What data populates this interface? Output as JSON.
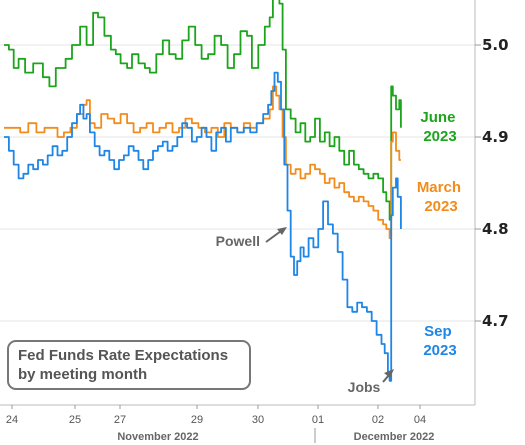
{
  "chart_data": {
    "type": "line",
    "title": "Fed Funds Rate Expectations",
    "subtitle": "by meeting month",
    "x_axis": {
      "ticks": [
        "24",
        "25",
        "27",
        "29",
        "30",
        "01",
        "02",
        "04"
      ],
      "months": [
        "November 2022",
        "December 2022"
      ]
    },
    "y_axis": {
      "ticks": [
        "5.0",
        "4.9",
        "4.8",
        "4.7"
      ],
      "range": [
        4.6,
        5.08
      ],
      "side": "right"
    },
    "annotations": [
      "Powell",
      "Jobs"
    ],
    "series": [
      {
        "name": "June 2023",
        "label_lines": [
          "June",
          "2023"
        ],
        "color": "#1ca51c",
        "points": [
          [
            0,
            5.0
          ],
          [
            0.3,
            4.995
          ],
          [
            0.6,
            4.975
          ],
          [
            0.9,
            4.985
          ],
          [
            1.3,
            4.97
          ],
          [
            1.8,
            4.98
          ],
          [
            2.4,
            4.965
          ],
          [
            2.8,
            4.955
          ],
          [
            3.2,
            4.975
          ],
          [
            3.8,
            4.985
          ],
          [
            4.2,
            5.0
          ],
          [
            4.7,
            5.02
          ],
          [
            5.1,
            5.0
          ],
          [
            5.5,
            5.035
          ],
          [
            5.8,
            5.03
          ],
          [
            6.2,
            5.01
          ],
          [
            6.6,
            4.995
          ],
          [
            6.9,
            4.99
          ],
          [
            7.2,
            4.98
          ],
          [
            7.6,
            4.975
          ],
          [
            7.9,
            4.99
          ],
          [
            8.3,
            4.98
          ],
          [
            8.7,
            4.975
          ],
          [
            9.0,
            4.97
          ],
          [
            9.4,
            4.99
          ],
          [
            9.8,
            5.005
          ],
          [
            10.2,
            4.99
          ],
          [
            10.6,
            4.985
          ],
          [
            11.0,
            5.005
          ],
          [
            11.4,
            5.02
          ],
          [
            11.8,
            5.0
          ],
          [
            12.2,
            4.985
          ],
          [
            12.6,
            4.99
          ],
          [
            13.0,
            5.01
          ],
          [
            13.4,
            5.0
          ],
          [
            13.8,
            4.975
          ],
          [
            14.2,
            4.99
          ],
          [
            14.6,
            5.015
          ],
          [
            15.0,
            5.01
          ],
          [
            15.3,
            4.975
          ],
          [
            15.7,
            5.0
          ],
          [
            16.1,
            5.02
          ],
          [
            16.4,
            5.03
          ],
          [
            16.6,
            5.065
          ],
          [
            16.8,
            5.055
          ],
          [
            17.0,
            5.045
          ],
          [
            17.2,
            4.995
          ],
          [
            17.4,
            4.93
          ],
          [
            17.7,
            4.92
          ],
          [
            18.0,
            4.905
          ],
          [
            18.3,
            4.915
          ],
          [
            18.6,
            4.895
          ],
          [
            18.9,
            4.9
          ],
          [
            19.2,
            4.92
          ],
          [
            19.5,
            4.895
          ],
          [
            19.8,
            4.905
          ],
          [
            20.1,
            4.89
          ],
          [
            20.4,
            4.9
          ],
          [
            20.7,
            4.885
          ],
          [
            21.0,
            4.87
          ],
          [
            21.3,
            4.885
          ],
          [
            21.6,
            4.87
          ],
          [
            21.9,
            4.865
          ],
          [
            22.2,
            4.86
          ],
          [
            22.5,
            4.855
          ],
          [
            22.8,
            4.86
          ],
          [
            23.1,
            4.855
          ],
          [
            23.4,
            4.84
          ],
          [
            23.6,
            4.83
          ],
          [
            23.8,
            4.81
          ],
          [
            23.9,
            4.955
          ],
          [
            24.0,
            4.945
          ],
          [
            24.2,
            4.93
          ],
          [
            24.4,
            4.94
          ],
          [
            24.5,
            4.91
          ]
        ]
      },
      {
        "name": "March 2023",
        "label_lines": [
          "March",
          "2023"
        ],
        "color": "#f28c1c",
        "points": [
          [
            0,
            4.91
          ],
          [
            0.5,
            4.91
          ],
          [
            1.0,
            4.905
          ],
          [
            1.5,
            4.915
          ],
          [
            2.0,
            4.905
          ],
          [
            2.5,
            4.91
          ],
          [
            2.9,
            4.91
          ],
          [
            3.3,
            4.9
          ],
          [
            3.7,
            4.905
          ],
          [
            4.1,
            4.91
          ],
          [
            4.5,
            4.925
          ],
          [
            4.9,
            4.935
          ],
          [
            5.1,
            4.94
          ],
          [
            5.3,
            4.915
          ],
          [
            5.6,
            4.91
          ],
          [
            6.0,
            4.925
          ],
          [
            6.4,
            4.92
          ],
          [
            6.8,
            4.915
          ],
          [
            7.2,
            4.925
          ],
          [
            7.6,
            4.915
          ],
          [
            8.0,
            4.905
          ],
          [
            8.4,
            4.91
          ],
          [
            8.8,
            4.915
          ],
          [
            9.2,
            4.905
          ],
          [
            9.6,
            4.91
          ],
          [
            10.0,
            4.915
          ],
          [
            10.4,
            4.905
          ],
          [
            10.8,
            4.91
          ],
          [
            11.2,
            4.92
          ],
          [
            11.6,
            4.915
          ],
          [
            12.0,
            4.91
          ],
          [
            12.4,
            4.905
          ],
          [
            12.8,
            4.91
          ],
          [
            13.2,
            4.9
          ],
          [
            13.6,
            4.915
          ],
          [
            14.0,
            4.91
          ],
          [
            14.4,
            4.905
          ],
          [
            14.8,
            4.915
          ],
          [
            15.2,
            4.91
          ],
          [
            15.6,
            4.915
          ],
          [
            16.0,
            4.92
          ],
          [
            16.4,
            4.93
          ],
          [
            16.6,
            4.955
          ],
          [
            16.8,
            4.945
          ],
          [
            17.0,
            4.93
          ],
          [
            17.2,
            4.9
          ],
          [
            17.4,
            4.87
          ],
          [
            17.7,
            4.86
          ],
          [
            18.0,
            4.865
          ],
          [
            18.3,
            4.855
          ],
          [
            18.6,
            4.86
          ],
          [
            18.9,
            4.87
          ],
          [
            19.2,
            4.865
          ],
          [
            19.5,
            4.86
          ],
          [
            19.8,
            4.85
          ],
          [
            20.1,
            4.855
          ],
          [
            20.4,
            4.845
          ],
          [
            20.7,
            4.85
          ],
          [
            21.0,
            4.84
          ],
          [
            21.3,
            4.835
          ],
          [
            21.6,
            4.83
          ],
          [
            21.9,
            4.835
          ],
          [
            22.2,
            4.83
          ],
          [
            22.5,
            4.825
          ],
          [
            22.8,
            4.82
          ],
          [
            23.1,
            4.81
          ],
          [
            23.4,
            4.805
          ],
          [
            23.6,
            4.8
          ],
          [
            23.8,
            4.79
          ],
          [
            23.9,
            4.895
          ],
          [
            24.0,
            4.905
          ],
          [
            24.2,
            4.885
          ],
          [
            24.4,
            4.875
          ],
          [
            24.5,
            4.875
          ]
        ]
      },
      {
        "name": "Sep 2023",
        "label_lines": [
          "Sep",
          "2023"
        ],
        "color": "#1e86e6",
        "points": [
          [
            0,
            4.9
          ],
          [
            0.3,
            4.885
          ],
          [
            0.6,
            4.87
          ],
          [
            0.9,
            4.855
          ],
          [
            1.2,
            4.86
          ],
          [
            1.5,
            4.87
          ],
          [
            1.8,
            4.865
          ],
          [
            2.1,
            4.875
          ],
          [
            2.4,
            4.87
          ],
          [
            2.7,
            4.88
          ],
          [
            3.0,
            4.89
          ],
          [
            3.3,
            4.88
          ],
          [
            3.6,
            4.885
          ],
          [
            3.9,
            4.9
          ],
          [
            4.2,
            4.915
          ],
          [
            4.5,
            4.925
          ],
          [
            4.7,
            4.935
          ],
          [
            4.9,
            4.92
          ],
          [
            5.1,
            4.925
          ],
          [
            5.3,
            4.905
          ],
          [
            5.6,
            4.89
          ],
          [
            5.9,
            4.88
          ],
          [
            6.2,
            4.885
          ],
          [
            6.5,
            4.875
          ],
          [
            6.8,
            4.865
          ],
          [
            7.1,
            4.875
          ],
          [
            7.4,
            4.88
          ],
          [
            7.7,
            4.89
          ],
          [
            8.0,
            4.885
          ],
          [
            8.3,
            4.875
          ],
          [
            8.6,
            4.865
          ],
          [
            8.9,
            4.875
          ],
          [
            9.2,
            4.885
          ],
          [
            9.5,
            4.89
          ],
          [
            9.8,
            4.895
          ],
          [
            10.1,
            4.885
          ],
          [
            10.4,
            4.89
          ],
          [
            10.7,
            4.9
          ],
          [
            11.0,
            4.915
          ],
          [
            11.3,
            4.91
          ],
          [
            11.6,
            4.895
          ],
          [
            11.9,
            4.9
          ],
          [
            12.2,
            4.91
          ],
          [
            12.5,
            4.9
          ],
          [
            12.8,
            4.885
          ],
          [
            13.1,
            4.905
          ],
          [
            13.4,
            4.91
          ],
          [
            13.7,
            4.895
          ],
          [
            14.0,
            4.91
          ],
          [
            14.4,
            4.905
          ],
          [
            14.8,
            4.91
          ],
          [
            15.2,
            4.905
          ],
          [
            15.6,
            4.915
          ],
          [
            16.0,
            4.925
          ],
          [
            16.3,
            4.935
          ],
          [
            16.5,
            4.95
          ],
          [
            16.7,
            4.97
          ],
          [
            16.9,
            4.96
          ],
          [
            17.1,
            4.93
          ],
          [
            17.3,
            4.87
          ],
          [
            17.5,
            4.82
          ],
          [
            17.7,
            4.77
          ],
          [
            17.9,
            4.75
          ],
          [
            18.1,
            4.765
          ],
          [
            18.3,
            4.78
          ],
          [
            18.5,
            4.77
          ],
          [
            18.8,
            4.79
          ],
          [
            19.1,
            4.78
          ],
          [
            19.4,
            4.8
          ],
          [
            19.7,
            4.83
          ],
          [
            20.0,
            4.805
          ],
          [
            20.3,
            4.795
          ],
          [
            20.6,
            4.775
          ],
          [
            20.9,
            4.745
          ],
          [
            21.2,
            4.715
          ],
          [
            21.5,
            4.71
          ],
          [
            21.8,
            4.72
          ],
          [
            22.1,
            4.715
          ],
          [
            22.4,
            4.71
          ],
          [
            22.7,
            4.7
          ],
          [
            23.0,
            4.685
          ],
          [
            23.3,
            4.675
          ],
          [
            23.5,
            4.665
          ],
          [
            23.7,
            4.645
          ],
          [
            23.8,
            4.635
          ],
          [
            23.9,
            4.815
          ],
          [
            24.0,
            4.845
          ],
          [
            24.2,
            4.855
          ],
          [
            24.3,
            4.835
          ],
          [
            24.5,
            4.8
          ]
        ]
      }
    ]
  }
}
